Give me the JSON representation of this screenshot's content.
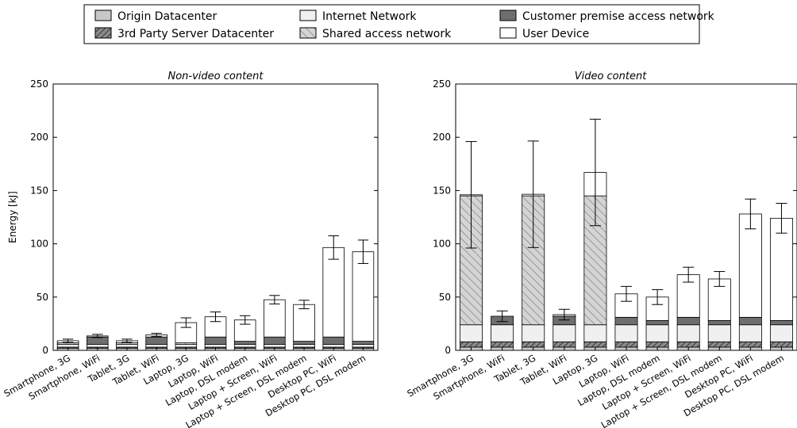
{
  "legend": [
    {
      "key": "origin",
      "label": "Origin Datacenter",
      "color": "#c8c8c8",
      "hatch": false
    },
    {
      "key": "thirdparty",
      "label": "3rd Party Server Datacenter",
      "color": "#8a8a8a",
      "hatch": true
    },
    {
      "key": "internet",
      "label": "Internet Network",
      "color": "#f0f0f0",
      "hatch": false
    },
    {
      "key": "shared",
      "label": "Shared access network",
      "color": "#d4d4d4",
      "hatch": true
    },
    {
      "key": "cpan",
      "label": "Customer premise access network",
      "color": "#6e6e6e",
      "hatch": false
    },
    {
      "key": "device",
      "label": "User Device",
      "color": "#ffffff",
      "hatch": false
    }
  ],
  "chart_data": [
    {
      "type": "bar",
      "stacked": true,
      "title": "Non-video content",
      "ylabel": "Energy [kJ]",
      "ylim": [
        0,
        250
      ],
      "yticks": [
        0,
        50,
        100,
        150,
        200,
        250
      ],
      "categories": [
        "Smartphone, 3G",
        "Smartphone, WiFi",
        "Tablet, 3G",
        "Tablet, WiFi",
        "Laptop, 3G",
        "Laptop, WiFi",
        "Laptop, DSL modem",
        "Laptop + Screen, WiFi",
        "Laptop + Screen, DSL modem",
        "Desktop PC, WiFi",
        "Desktop PC, DSL modem"
      ],
      "series": [
        {
          "name": "Origin Datacenter",
          "values": [
            2,
            2,
            2,
            2,
            2,
            2,
            2,
            2,
            2,
            2,
            2
          ]
        },
        {
          "name": "3rd Party Server Datacenter",
          "values": [
            1,
            1,
            1,
            1,
            1,
            1,
            1,
            1,
            1,
            1,
            1
          ]
        },
        {
          "name": "Internet Network",
          "values": [
            2.5,
            2.5,
            2.5,
            2.5,
            2.5,
            2.5,
            2.5,
            2.5,
            2.5,
            2.5,
            2.5
          ]
        },
        {
          "name": "Shared access network",
          "values": [
            1.5,
            0,
            1.5,
            0,
            1.5,
            0,
            0,
            0,
            0,
            0,
            0
          ]
        },
        {
          "name": "Customer premise access network",
          "values": [
            0,
            7,
            0,
            7,
            0,
            7,
            3,
            7,
            3,
            7,
            3
          ]
        },
        {
          "name": "User Device",
          "values": [
            2,
            1,
            2,
            2,
            19,
            19,
            20,
            35,
            34.5,
            84,
            84
          ]
        }
      ],
      "error": [
        1.5,
        1.5,
        1.5,
        1.5,
        4.5,
        4.5,
        4,
        4,
        4,
        11,
        11
      ]
    },
    {
      "type": "bar",
      "stacked": true,
      "title": "Video content",
      "ylabel": "",
      "ylim": [
        0,
        250
      ],
      "yticks": [
        0,
        50,
        100,
        150,
        200,
        250
      ],
      "categories": [
        "Smartphone, 3G",
        "Smartphone, WiFi",
        "Tablet, 3G",
        "Tablet, WiFi",
        "Laptop, 3G",
        "Laptop, WiFi",
        "Laptop, DSL modem",
        "Laptop + Screen, WiFi",
        "Laptop + Screen, DSL modem",
        "Desktop PC, WiFi",
        "Desktop PC, DSL modem"
      ],
      "series": [
        {
          "name": "Origin Datacenter",
          "values": [
            3,
            3,
            3,
            3,
            3,
            3,
            3,
            3,
            3,
            3,
            3
          ]
        },
        {
          "name": "3rd Party Server Datacenter",
          "values": [
            5,
            5,
            5,
            5,
            5,
            5,
            5,
            5,
            5,
            5,
            5
          ]
        },
        {
          "name": "Internet Network",
          "values": [
            16,
            16,
            16,
            16,
            16,
            16,
            16,
            16,
            16,
            16,
            16
          ]
        },
        {
          "name": "Shared access network",
          "values": [
            121,
            0,
            121,
            0,
            121,
            0,
            0,
            0,
            0,
            0,
            0
          ]
        },
        {
          "name": "Customer premise access network",
          "values": [
            0,
            8,
            0,
            8,
            0,
            7,
            4,
            7,
            4,
            7,
            4
          ]
        },
        {
          "name": "User Device",
          "values": [
            1,
            0,
            1.5,
            1.5,
            22,
            22,
            22,
            40,
            39,
            97,
            96
          ]
        }
      ],
      "error": [
        50,
        5,
        50,
        5,
        50,
        7,
        7,
        7,
        7,
        14,
        14
      ]
    }
  ]
}
